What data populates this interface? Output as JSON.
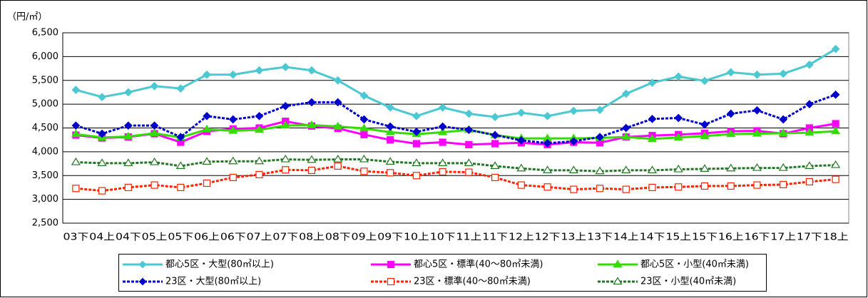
{
  "chart_data": {
    "type": "line",
    "unit_label": "（円/㎡）",
    "categories": [
      "03下",
      "04上",
      "04下",
      "05上",
      "05下",
      "06上",
      "06下",
      "07上",
      "07下",
      "08上",
      "08下",
      "09上",
      "09下",
      "10上",
      "10下",
      "11上",
      "11下",
      "12上",
      "12下",
      "13上",
      "13下",
      "14上",
      "14下",
      "15上",
      "15下",
      "16上",
      "16下",
      "17上",
      "17下",
      "18上"
    ],
    "ylim": [
      2500,
      6500
    ],
    "yticks": [
      {
        "value": 2500,
        "label": "2,500"
      },
      {
        "value": 3000,
        "label": "3,000"
      },
      {
        "value": 3500,
        "label": "3,500"
      },
      {
        "value": 4000,
        "label": "4,000"
      },
      {
        "value": 4500,
        "label": "4,500"
      },
      {
        "value": 5000,
        "label": "5,000"
      },
      {
        "value": 5500,
        "label": "5,500"
      },
      {
        "value": 6000,
        "label": "6,000"
      },
      {
        "value": 6500,
        "label": "6,500"
      }
    ],
    "grid": true,
    "legend": "bottom",
    "series": [
      {
        "name": "都心5区・大型(80㎡以上)",
        "color": "#4bc8d2",
        "marker": "diamond",
        "dashed": false,
        "hollow": false,
        "values": [
          5300,
          5150,
          5250,
          5380,
          5330,
          5620,
          5620,
          5710,
          5780,
          5710,
          5500,
          5180,
          4930,
          4750,
          4930,
          4800,
          4730,
          4820,
          4750,
          4860,
          4880,
          5220,
          5450,
          5580,
          5490,
          5670,
          5620,
          5640,
          5830,
          6160
        ]
      },
      {
        "name": "都心5区・標準(40～80㎡未満)",
        "color": "#ff00ff",
        "marker": "square",
        "dashed": false,
        "hollow": false,
        "values": [
          4350,
          4290,
          4310,
          4380,
          4200,
          4430,
          4480,
          4500,
          4640,
          4540,
          4490,
          4360,
          4250,
          4170,
          4200,
          4150,
          4170,
          4190,
          4150,
          4200,
          4190,
          4310,
          4340,
          4360,
          4390,
          4430,
          4440,
          4380,
          4500,
          4590
        ]
      },
      {
        "name": "都心5区・小型(40㎡未満)",
        "color": "#33dd00",
        "marker": "triangle",
        "dashed": false,
        "hollow": false,
        "values": [
          4370,
          4300,
          4320,
          4390,
          4300,
          4470,
          4440,
          4460,
          4550,
          4560,
          4530,
          4490,
          4410,
          4370,
          4410,
          4460,
          4350,
          4280,
          4280,
          4280,
          4290,
          4310,
          4270,
          4300,
          4330,
          4370,
          4380,
          4390,
          4400,
          4430
        ]
      },
      {
        "name": "23区・大型(80㎡以上)",
        "color": "#0000cc",
        "marker": "diamond",
        "dashed": true,
        "hollow": false,
        "values": [
          4550,
          4380,
          4550,
          4550,
          4310,
          4750,
          4680,
          4750,
          4960,
          5040,
          5040,
          4680,
          4530,
          4420,
          4530,
          4460,
          4350,
          4240,
          4180,
          4220,
          4310,
          4500,
          4690,
          4710,
          4570,
          4800,
          4870,
          4680,
          5000,
          5200
        ]
      },
      {
        "name": "23区・標準(40～80㎡未満)",
        "color": "#ff2200",
        "marker": "square",
        "dashed": true,
        "hollow": true,
        "values": [
          3230,
          3180,
          3250,
          3300,
          3250,
          3340,
          3460,
          3520,
          3620,
          3610,
          3700,
          3590,
          3560,
          3500,
          3580,
          3570,
          3460,
          3300,
          3260,
          3210,
          3230,
          3210,
          3250,
          3260,
          3280,
          3280,
          3300,
          3310,
          3370,
          3420
        ]
      },
      {
        "name": "23区・小型(40㎡未満)",
        "color": "#227722",
        "marker": "triangle",
        "dashed": true,
        "hollow": true,
        "values": [
          3780,
          3760,
          3760,
          3780,
          3700,
          3790,
          3800,
          3800,
          3840,
          3830,
          3840,
          3840,
          3790,
          3760,
          3760,
          3760,
          3700,
          3650,
          3610,
          3610,
          3590,
          3610,
          3610,
          3630,
          3640,
          3650,
          3660,
          3660,
          3700,
          3720
        ]
      }
    ]
  }
}
